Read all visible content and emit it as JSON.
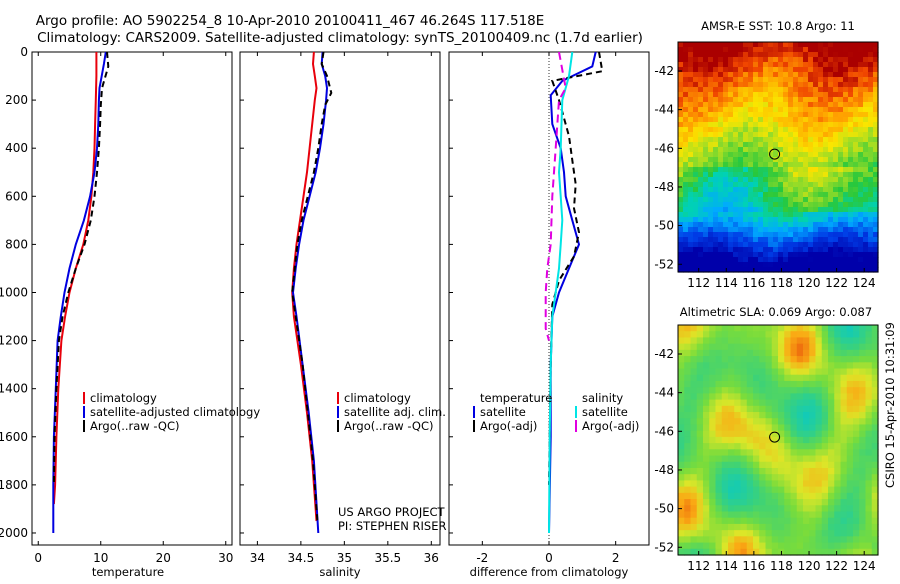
{
  "title": {
    "line1": "Argo profile: AO 5902254_8 10-Apr-2010 20100411_467 46.264S 117.518E",
    "line2": "Climatology: CARS2009. Satellite-adjusted climatology: synTS_20100409.nc (1.7d earlier)"
  },
  "footer": {
    "project": "US ARGO PROJECT",
    "pi": "PI: STEPHEN RISER"
  },
  "side_label": "CSIRO 15-Apr-2010 10:31:09",
  "colors": {
    "climatology": "#e8000b",
    "satellite": "#0000e0",
    "argo": "#000000",
    "sat_salinity": "#00e5e5",
    "argo_salinity": "#e000e0"
  },
  "chart_data": [
    {
      "type": "line",
      "xlabel": "temperature",
      "ylabel": "",
      "xlim": [
        -1,
        31
      ],
      "ylim": [
        2050,
        0
      ],
      "xticks": [
        0,
        10,
        20,
        30
      ],
      "yticks": [
        0,
        200,
        400,
        600,
        800,
        1000,
        1200,
        1400,
        1600,
        1800,
        2000
      ],
      "legend": [
        "climatology",
        "satellite-adjusted climatology",
        "Argo(..raw -QC)"
      ],
      "legend_position": "lower-right",
      "series": [
        {
          "name": "climatology",
          "color": "#e8000b",
          "dash": "none",
          "x": [
            9.3,
            9.3,
            9.2,
            9.1,
            9.0,
            8.8,
            8.5,
            8.0,
            7.2,
            6.0,
            5.0,
            4.3,
            3.7,
            3.2,
            2.9,
            2.7,
            2.5
          ],
          "y": [
            0,
            100,
            200,
            300,
            400,
            500,
            600,
            700,
            800,
            900,
            1000,
            1100,
            1200,
            1400,
            1600,
            1800,
            1880
          ]
        },
        {
          "name": "satellite-adjusted climatology",
          "color": "#0000e0",
          "dash": "none",
          "x": [
            10.8,
            10.5,
            9.8,
            9.7,
            9.6,
            9.4,
            9.0,
            8.3,
            7.3,
            6.0,
            5.0,
            4.2,
            3.6,
            3.1,
            2.8,
            2.5,
            2.4,
            2.4
          ],
          "y": [
            0,
            50,
            150,
            200,
            300,
            400,
            500,
            600,
            700,
            800,
            900,
            1000,
            1100,
            1200,
            1400,
            1600,
            1800,
            2000
          ]
        },
        {
          "name": "Argo(..raw -QC)",
          "color": "#000000",
          "dash": "6,4",
          "x": [
            11.0,
            11.2,
            10.2,
            10.0,
            9.9,
            9.7,
            9.4,
            9.0,
            8.4,
            7.4,
            6.0,
            4.8,
            3.9,
            3.3,
            2.9,
            2.6,
            2.5
          ],
          "y": [
            0,
            60,
            150,
            220,
            300,
            400,
            500,
            600,
            700,
            800,
            900,
            1000,
            1100,
            1200,
            1400,
            1600,
            1800
          ]
        }
      ]
    },
    {
      "type": "line",
      "xlabel": "salinity",
      "ylabel": "",
      "xlim": [
        33.8,
        36.1
      ],
      "ylim": [
        2050,
        0
      ],
      "xticks": [
        34,
        34.5,
        35,
        35.5,
        36
      ],
      "legend": [
        "climatology",
        "satellite adj. clim.",
        "Argo(..raw -QC)"
      ],
      "legend_position": "lower-right",
      "series": [
        {
          "name": "climatology",
          "color": "#e8000b",
          "dash": "none",
          "x": [
            34.65,
            34.64,
            34.66,
            34.68,
            34.66,
            34.63,
            34.6,
            34.57,
            34.53,
            34.49,
            34.45,
            34.42,
            34.4,
            34.42,
            34.5,
            34.57,
            34.63,
            34.68
          ],
          "y": [
            0,
            50,
            100,
            150,
            200,
            300,
            400,
            500,
            600,
            700,
            800,
            900,
            1000,
            1100,
            1300,
            1500,
            1700,
            1950
          ]
        },
        {
          "name": "satellite adj. clim.",
          "color": "#0000e0",
          "dash": "none",
          "x": [
            34.75,
            34.74,
            34.78,
            34.8,
            34.79,
            34.76,
            34.72,
            34.67,
            34.6,
            34.53,
            34.48,
            34.44,
            34.41,
            34.45,
            34.52,
            34.59,
            34.65,
            34.7
          ],
          "y": [
            0,
            50,
            100,
            150,
            200,
            300,
            400,
            500,
            600,
            700,
            800,
            900,
            1000,
            1100,
            1300,
            1500,
            1700,
            2000
          ]
        },
        {
          "name": "Argo(..raw -QC)",
          "color": "#000000",
          "dash": "6,4",
          "x": [
            34.76,
            34.74,
            34.8,
            34.85,
            34.78,
            34.74,
            34.7,
            34.65,
            34.58,
            34.51,
            34.46,
            34.43,
            34.4,
            34.44,
            34.52,
            34.58,
            34.64,
            34.69
          ],
          "y": [
            0,
            50,
            100,
            170,
            220,
            300,
            400,
            500,
            600,
            700,
            800,
            900,
            1000,
            1100,
            1300,
            1500,
            1700,
            1950
          ]
        }
      ]
    },
    {
      "type": "line",
      "xlabel": "difference from climatology",
      "ylabel": "",
      "xlim": [
        -3,
        3
      ],
      "ylim": [
        2050,
        0
      ],
      "xticks": [
        -2,
        0,
        2
      ],
      "legend": [
        "temperature",
        "satellite",
        "Argo(-adj)",
        "salinity",
        "satellite",
        "Argo(-adj)"
      ],
      "legend_position": "lower",
      "series": [
        {
          "name": "satellite",
          "color": "#0000e0",
          "dash": "none",
          "x": [
            1.4,
            1.3,
            0.4,
            0.05,
            0.1,
            0.35,
            0.45,
            0.5,
            0.7,
            0.9,
            0.6,
            0.3,
            0.1,
            0.05,
            0.05,
            0.0
          ],
          "y": [
            0,
            60,
            120,
            180,
            300,
            400,
            500,
            600,
            700,
            800,
            900,
            1000,
            1100,
            1300,
            1600,
            2000
          ]
        },
        {
          "name": "Argo(-adj)",
          "color": "#000000",
          "dash": "6,4",
          "x": [
            1.5,
            1.6,
            0.1,
            0.3,
            0.6,
            0.7,
            0.8,
            0.75,
            0.9,
            0.75,
            0.3,
            0.1,
            0.05,
            0.0
          ],
          "y": [
            0,
            80,
            120,
            200,
            350,
            450,
            550,
            650,
            750,
            850,
            950,
            1050,
            1300,
            1800
          ]
        },
        {
          "name": "satellite",
          "color": "#00e5e5",
          "dash": "none",
          "x": [
            0.7,
            0.6,
            0.4,
            0.35,
            0.3,
            0.35,
            0.4,
            0.35,
            0.3,
            0.2,
            0.1,
            0.05,
            0.02,
            0.0
          ],
          "y": [
            0,
            100,
            200,
            400,
            500,
            600,
            700,
            800,
            900,
            1000,
            1100,
            1300,
            1600,
            2000
          ]
        },
        {
          "name": "Argo(-adj)",
          "color": "#e000e0",
          "dash": "8,5",
          "x": [
            0.3,
            0.5,
            0.3,
            0.2,
            0.1,
            0.05,
            -0.05,
            -0.1,
            -0.1,
            0.0
          ],
          "y": [
            0,
            150,
            200,
            400,
            600,
            800,
            900,
            1000,
            1150,
            1200
          ]
        }
      ]
    }
  ],
  "maps": [
    {
      "type": "heatmap",
      "title": "AMSR-E SST: 10.8 Argo: 11",
      "xticks": [
        112,
        114,
        116,
        118,
        120,
        122,
        124
      ],
      "yticks": [
        -42,
        -44,
        -46,
        -48,
        -50,
        -52
      ],
      "xlim": [
        110.5,
        125
      ],
      "ylim": [
        -52.4,
        -40.5
      ],
      "marker": {
        "lon": 117.5,
        "lat": -46.3
      }
    },
    {
      "type": "heatmap",
      "title": "Altimetric SLA: 0.069 Argo: 0.087",
      "xticks": [
        112,
        114,
        116,
        118,
        120,
        122,
        124
      ],
      "yticks": [
        -42,
        -44,
        -46,
        -48,
        -50,
        -52
      ],
      "xlim": [
        110.5,
        125
      ],
      "ylim": [
        -52.4,
        -40.5
      ],
      "marker": {
        "lon": 117.5,
        "lat": -46.3
      }
    }
  ]
}
